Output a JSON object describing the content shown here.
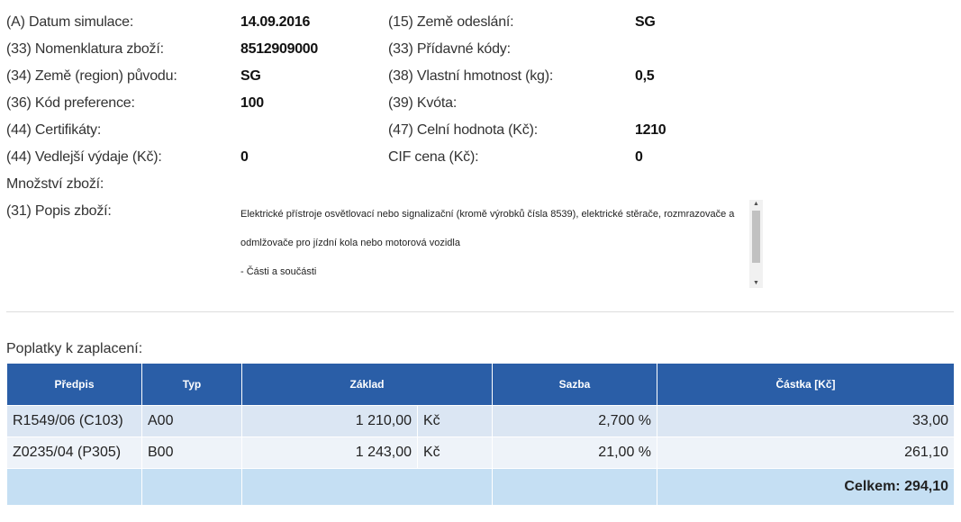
{
  "details": {
    "left": [
      {
        "label": "(A) Datum simulace:",
        "value": "14.09.2016"
      },
      {
        "label": "(33) Nomenklatura zboží:",
        "value": "8512909000"
      },
      {
        "label": "(34) Země (region) původu:",
        "value": "SG"
      },
      {
        "label": "(36) Kód preference:",
        "value": "100"
      },
      {
        "label": "(44) Certifikáty:",
        "value": ""
      },
      {
        "label": "(44) Vedlejší výdaje (Kč):",
        "value": "0"
      },
      {
        "label": "Množství zboží:",
        "value": ""
      },
      {
        "label": "(31) Popis zboží:",
        "value": ""
      }
    ],
    "right": [
      {
        "label": "(15) Země odeslání:",
        "value": "SG"
      },
      {
        "label": "(33) Přídavné kódy:",
        "value": ""
      },
      {
        "label": "(38) Vlastní hmotnost (kg):",
        "value": "0,5"
      },
      {
        "label": "(39) Kvóta:",
        "value": ""
      },
      {
        "label": "(47) Celní hodnota (Kč):",
        "value": "1210"
      },
      {
        "label": "CIF cena (Kč):",
        "value": "0"
      }
    ]
  },
  "description": {
    "line1": "Elektrické přístroje osvětlovací nebo signalizační (kromě výrobků čísla 8539), elektrické stěrače, rozmrazovače a",
    "line2": "odmlžovače pro jízdní kola nebo motorová vozidla",
    "line3": "- Části a součásti"
  },
  "fees": {
    "title": "Poplatky k zaplacení:",
    "headers": {
      "predpis": "Předpis",
      "typ": "Typ",
      "zaklad": "Základ",
      "sazba": "Sazba",
      "castka": "Částka [Kč]"
    },
    "rows": [
      {
        "predpis": "R1549/06 (C103)",
        "typ": "A00",
        "zaklad": "1 210,00",
        "unit": "Kč",
        "sazba": "2,700 %",
        "castka": "33,00"
      },
      {
        "predpis": "Z0235/04 (P305)",
        "typ": "B00",
        "zaklad": "1 243,00",
        "unit": "Kč",
        "sazba": "21,00 %",
        "castka": "261,10"
      }
    ],
    "total": "Celkem: 294,10"
  },
  "colors": {
    "header_bg": "#2a5ea7",
    "row1_bg": "#dbe6f3",
    "row2_bg": "#eef3f9",
    "total_bg": "#c5dff3"
  }
}
